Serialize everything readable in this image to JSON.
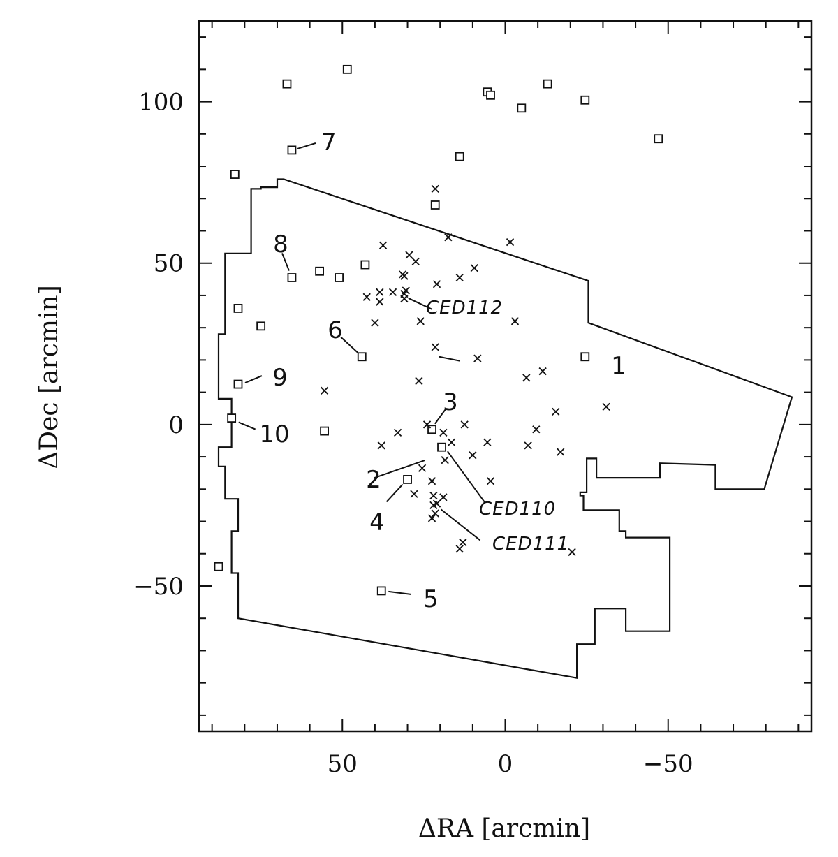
{
  "chart_data": {
    "type": "scatter",
    "title": "",
    "xlabel": "ΔRA [arcmin]",
    "ylabel": "ΔDec [arcmin]",
    "xlim": [
      94,
      -94
    ],
    "ylim": [
      -95,
      125
    ],
    "x_reversed": true,
    "xticks": [
      50,
      0,
      -50
    ],
    "xtick_labels": [
      "50",
      "0",
      "−50"
    ],
    "yticks": [
      100,
      50,
      0,
      -50
    ],
    "ytick_labels": [
      "100",
      "50",
      "0",
      "−50"
    ],
    "grid": false,
    "legend": "none",
    "colors": {
      "ink": "#111111",
      "background": "#ffffff"
    },
    "series": [
      {
        "marker": "square",
        "points": [
          [
            48.5,
            110
          ],
          [
            67,
            105.5
          ],
          [
            -13,
            105.5
          ],
          [
            5.5,
            103
          ],
          [
            4.5,
            102
          ],
          [
            -24.5,
            100.5
          ],
          [
            -5,
            98
          ],
          [
            -47,
            88.5
          ],
          [
            65.5,
            85
          ],
          [
            14,
            83
          ],
          [
            83,
            77.5
          ],
          [
            21.5,
            68
          ],
          [
            43,
            49.5
          ],
          [
            57,
            47.5
          ],
          [
            51,
            45.5
          ],
          [
            65.5,
            45.5
          ],
          [
            82,
            36
          ],
          [
            75,
            30.5
          ],
          [
            44,
            21
          ],
          [
            -24.5,
            21
          ],
          [
            82,
            12.5
          ],
          [
            84,
            2
          ],
          [
            55.5,
            -2
          ],
          [
            22.5,
            -1.5
          ],
          [
            19.5,
            -7
          ],
          [
            30,
            -17
          ],
          [
            88,
            -44
          ],
          [
            38,
            -51.5
          ]
        ]
      },
      {
        "marker": "cross",
        "points": [
          [
            21.5,
            73
          ],
          [
            17.5,
            58
          ],
          [
            37.5,
            55.5
          ],
          [
            -1.5,
            56.5
          ],
          [
            29.5,
            52.5
          ],
          [
            27.5,
            50.5
          ],
          [
            9.5,
            48.5
          ],
          [
            31.5,
            46.5
          ],
          [
            31,
            46
          ],
          [
            14,
            45.5
          ],
          [
            21,
            43.5
          ],
          [
            38.5,
            41
          ],
          [
            34.5,
            41
          ],
          [
            30.5,
            41.5
          ],
          [
            31,
            40.5
          ],
          [
            42.5,
            39.5
          ],
          [
            38.5,
            38
          ],
          [
            31,
            39
          ],
          [
            40,
            31.5
          ],
          [
            26,
            32
          ],
          [
            -3,
            32
          ],
          [
            21.5,
            24
          ],
          [
            8.5,
            20.5
          ],
          [
            -11.5,
            16.5
          ],
          [
            -6.5,
            14.5
          ],
          [
            26.5,
            13.5
          ],
          [
            55.5,
            10.5
          ],
          [
            -31,
            5.5
          ],
          [
            -15.5,
            4
          ],
          [
            24,
            0
          ],
          [
            12.5,
            0
          ],
          [
            -9.5,
            -1.5
          ],
          [
            33,
            -2.5
          ],
          [
            19,
            -2.5
          ],
          [
            38,
            -6.5
          ],
          [
            16.5,
            -5.5
          ],
          [
            5.5,
            -5.5
          ],
          [
            -7,
            -6.5
          ],
          [
            -17,
            -8.5
          ],
          [
            10,
            -9.5
          ],
          [
            18.5,
            -11
          ],
          [
            25.5,
            -13.5
          ],
          [
            4.5,
            -17.5
          ],
          [
            22.5,
            -17.5
          ],
          [
            28,
            -21.5
          ],
          [
            22,
            -22
          ],
          [
            21,
            -24.5
          ],
          [
            19,
            -22.5
          ],
          [
            22,
            -25
          ],
          [
            21.5,
            -27.5
          ],
          [
            22.5,
            -29
          ],
          [
            13,
            -36.5
          ],
          [
            14,
            -38.5
          ],
          [
            -20.5,
            -39.5
          ]
        ]
      }
    ],
    "annotations": [
      {
        "text": "1",
        "x": 22,
        "y": 21
      },
      {
        "text": "2",
        "x": 23,
        "y": -10
      },
      {
        "text": "3",
        "x": 22,
        "y": -1.5
      },
      {
        "text": "4",
        "x": 30,
        "y": -17
      },
      {
        "text": "5",
        "x": 38,
        "y": -51.5
      },
      {
        "text": "6",
        "x": 44,
        "y": 21
      },
      {
        "text": "7",
        "x": 65.5,
        "y": 85
      },
      {
        "text": "8",
        "x": 65.5,
        "y": 45.5
      },
      {
        "text": "9",
        "x": 82,
        "y": 12.5
      },
      {
        "text": "10",
        "x": 84,
        "y": 2
      },
      {
        "text": "CED112",
        "x": 31,
        "y": 40
      },
      {
        "text": "CED110",
        "x": 19,
        "y": -7
      },
      {
        "text": "CED111",
        "x": 21,
        "y": -25
      }
    ],
    "region_outline": [
      [
        82,
        -60
      ],
      [
        82,
        -46
      ],
      [
        84,
        -46
      ],
      [
        84,
        -33
      ],
      [
        82,
        -33
      ],
      [
        82,
        -23
      ],
      [
        86,
        -23
      ],
      [
        86,
        -13
      ],
      [
        88,
        -13
      ],
      [
        88,
        -7
      ],
      [
        84,
        -7
      ],
      [
        84,
        8
      ],
      [
        88,
        8
      ],
      [
        88,
        28
      ],
      [
        86,
        28
      ],
      [
        86,
        53
      ],
      [
        78,
        53
      ],
      [
        78,
        73
      ],
      [
        75,
        73
      ],
      [
        75,
        73.5
      ],
      [
        70,
        73.5
      ],
      [
        70,
        76
      ],
      [
        68,
        76
      ],
      [
        -25.5,
        44.5
      ],
      [
        -25.5,
        31.5
      ],
      [
        -88,
        8.5
      ],
      [
        -79.5,
        -20
      ],
      [
        -64.5,
        -20
      ],
      [
        -64.5,
        -12.5
      ],
      [
        -47.5,
        -12
      ],
      [
        -47.5,
        -16.5
      ],
      [
        -28,
        -16.5
      ],
      [
        -28,
        -10.5
      ],
      [
        -25,
        -10.5
      ],
      [
        -25,
        -21
      ],
      [
        -23,
        -21
      ],
      [
        -23,
        -22
      ],
      [
        -24,
        -22
      ],
      [
        -24,
        -26.5
      ],
      [
        -35,
        -26.5
      ],
      [
        -35,
        -33
      ],
      [
        -37,
        -33
      ],
      [
        -37,
        -35
      ],
      [
        -50.5,
        -35
      ],
      [
        -50.5,
        -64
      ],
      [
        -37,
        -64
      ],
      [
        -37,
        -57
      ],
      [
        -27.5,
        -57
      ],
      [
        -27.5,
        -68
      ],
      [
        -22,
        -68
      ],
      [
        -22,
        -78.5
      ]
    ]
  }
}
